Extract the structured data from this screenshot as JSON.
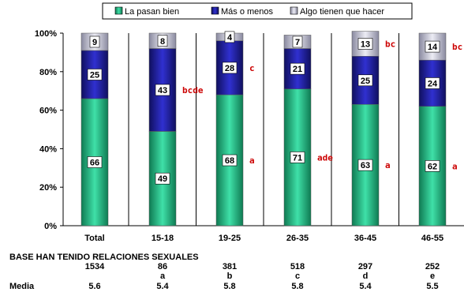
{
  "chart_data": {
    "type": "bar",
    "stacked": true,
    "percent_stacked": true,
    "categories": [
      "Total",
      "15-18",
      "19-25",
      "26-35",
      "36-45",
      "46-55"
    ],
    "series": [
      {
        "name": "La pasan bien",
        "values": [
          66,
          49,
          68,
          71,
          63,
          62
        ],
        "color": "#1fae7a"
      },
      {
        "name": "Más o menos",
        "values": [
          25,
          43,
          28,
          21,
          25,
          24
        ],
        "color": "#1b1b8a"
      },
      {
        "name": "Algo tienen que hacer",
        "values": [
          9,
          8,
          4,
          7,
          13,
          14
        ],
        "color": "#b8b8cc"
      }
    ],
    "segment_labels": [
      [
        "66",
        "49",
        "68",
        "71",
        "63",
        "62"
      ],
      [
        "25",
        "43",
        "28",
        "21",
        "25",
        "24"
      ],
      [
        "9",
        "8",
        "4",
        "7",
        "13",
        "14"
      ]
    ],
    "annotations": [
      {
        "category": "15-18",
        "segment": 1,
        "text": "bcde"
      },
      {
        "category": "19-25",
        "segment": 0,
        "text": "a"
      },
      {
        "category": "19-25",
        "segment": 1,
        "text": "c"
      },
      {
        "category": "26-35",
        "segment": 0,
        "text": "ade"
      },
      {
        "category": "36-45",
        "segment": 0,
        "text": "a"
      },
      {
        "category": "36-45",
        "segment": 2,
        "text": "bc"
      },
      {
        "category": "46-55",
        "segment": 0,
        "text": "a"
      },
      {
        "category": "46-55",
        "segment": 2,
        "text": "bc"
      }
    ],
    "ylim": [
      0,
      100
    ],
    "yticks": [
      "0%",
      "20%",
      "40%",
      "60%",
      "80%",
      "100%"
    ],
    "legend_position": "top",
    "grid": false
  },
  "footer": {
    "base_label": "BASE HAN TENIDO RELACIONES SEXUALES",
    "base_values": [
      "1534",
      "86",
      "381",
      "518",
      "297",
      "252"
    ],
    "letters": [
      "",
      "a",
      "b",
      "c",
      "d",
      "e"
    ],
    "media_label": "Media",
    "media_values": [
      "5.6",
      "5.4",
      "5.8",
      "5.8",
      "5.4",
      "5.5"
    ]
  }
}
